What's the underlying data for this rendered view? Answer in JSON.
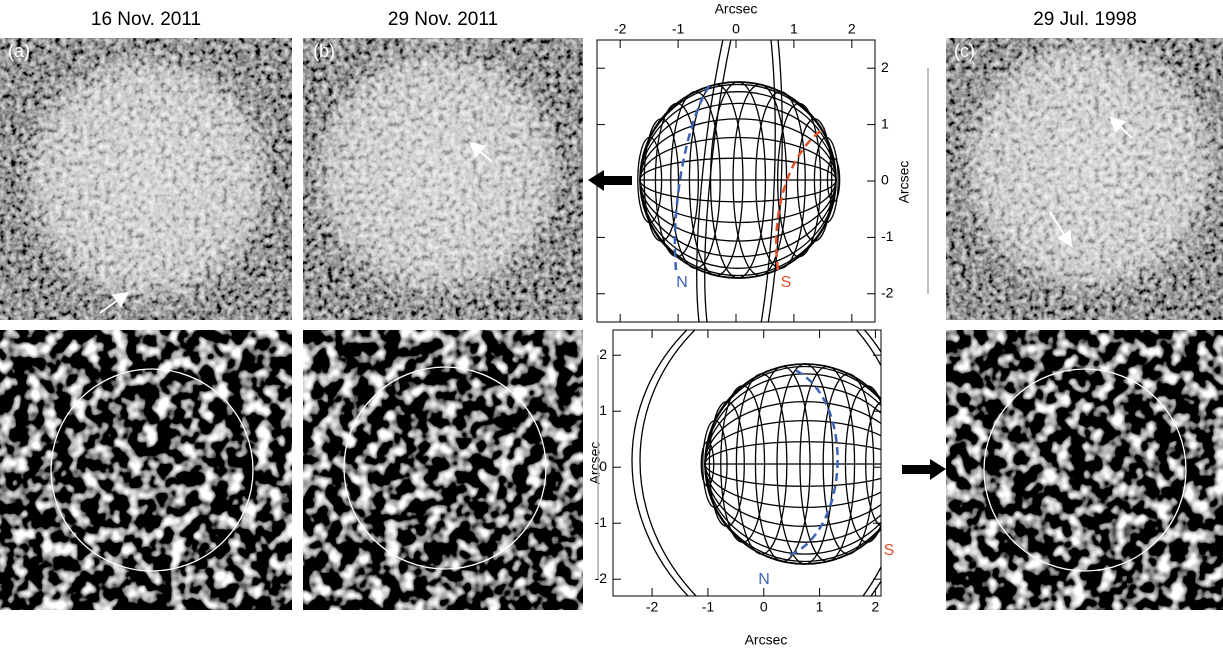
{
  "panels": [
    {
      "title": "16 Nov. 2011",
      "label": "(a)"
    },
    {
      "title": "29 Nov. 2011",
      "label": "(b)"
    },
    {
      "title": "29 Jul. 1998",
      "label": "(c)"
    }
  ],
  "plots": [
    {
      "x_label": "Arcsec",
      "y_label": "Arcsec",
      "xlim": [
        -2.4,
        2.4
      ],
      "ylim": [
        -2.5,
        2.5
      ],
      "xticks": [
        -2,
        -1,
        0,
        1,
        2
      ],
      "yticks": [
        -2,
        -1,
        0,
        1,
        2
      ],
      "north": "N",
      "south": "S"
    },
    {
      "x_label": "Arcsec",
      "y_label": "Arcsec",
      "xlim": [
        -2.7,
        2.1
      ],
      "ylim": [
        -2.3,
        2.45
      ],
      "xticks": [
        -2,
        -1,
        0,
        1,
        2
      ],
      "yticks": [
        -2,
        -1,
        0,
        1,
        2
      ],
      "north": "N",
      "south": "S"
    }
  ]
}
